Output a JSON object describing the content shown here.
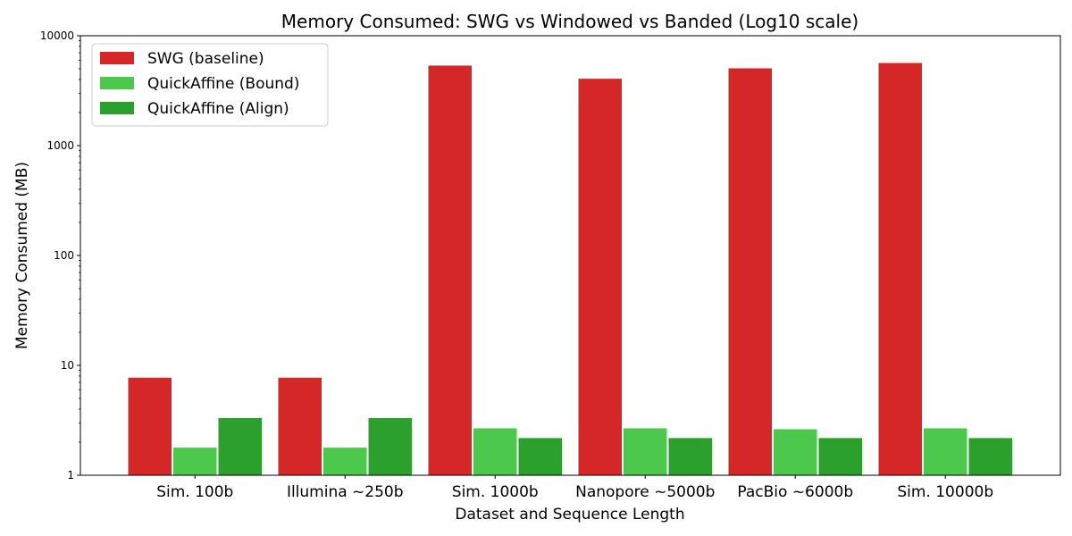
{
  "chart_data": {
    "type": "bar",
    "title": "Memory Consumed: SWG vs Windowed vs Banded (Log10 scale)",
    "xlabel": "Dataset and Sequence Length",
    "ylabel": "Memory Consumed (MB)",
    "yscale": "log",
    "ylim": [
      1,
      10000
    ],
    "yticks": [
      {
        "value": 1,
        "label": "1"
      },
      {
        "value": 10,
        "label": "10"
      },
      {
        "value": 100,
        "label": "100"
      },
      {
        "value": 1000,
        "label": "1000"
      },
      {
        "value": 10000,
        "label": "10000"
      }
    ],
    "categories": [
      "Sim. 100b",
      "Illumina ~250b",
      "Sim. 1000b",
      "Nanopore ~5000b",
      "PacBio ~6000b",
      "Sim. 10000b"
    ],
    "series": [
      {
        "name": "SWG (baseline)",
        "color": "#d62728",
        "values": [
          7.8,
          7.8,
          5400,
          4100,
          5100,
          5700
        ]
      },
      {
        "name": "QuickAffine (Bound)",
        "color": "#4cc94c",
        "values": [
          1.8,
          1.8,
          2.7,
          2.7,
          2.65,
          2.7
        ]
      },
      {
        "name": "QuickAffine (Align)",
        "color": "#2ca02c",
        "values": [
          3.35,
          3.35,
          2.2,
          2.2,
          2.2,
          2.2
        ]
      }
    ],
    "legend": "top-left",
    "grid": false
  }
}
